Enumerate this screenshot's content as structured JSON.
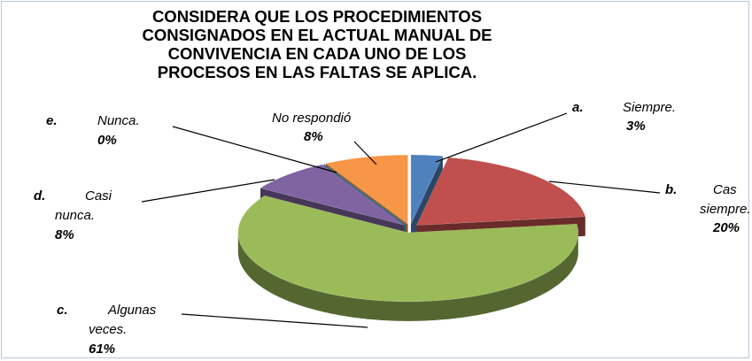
{
  "chart_data": {
    "type": "pie3d",
    "title": "CONSIDERA QUE LOS PROCEDIMIENTOS CONSIGNADOS EN EL ACTUAL MANUAL DE CONVIVENCIA EN CADA UNO DE LOS PROCESOS EN LAS FALTAS SE APLICA.",
    "prefixes": [
      "a.",
      "b.",
      "c.",
      "d.",
      "e.",
      null
    ],
    "categories": [
      "Siempre.",
      "Cas siempre.",
      "Algunas veces.",
      "Casi nunca.",
      "Nunca.",
      "No respondió"
    ],
    "values": [
      3,
      20,
      61,
      8,
      0,
      8
    ],
    "value_labels": [
      "3%",
      "20%",
      "61%",
      "8%",
      "0%",
      "8%"
    ],
    "colors": [
      "#4f81bd",
      "#c0504d",
      "#9bbb59",
      "#8064a2",
      "#4bacc6",
      "#f79646"
    ]
  }
}
